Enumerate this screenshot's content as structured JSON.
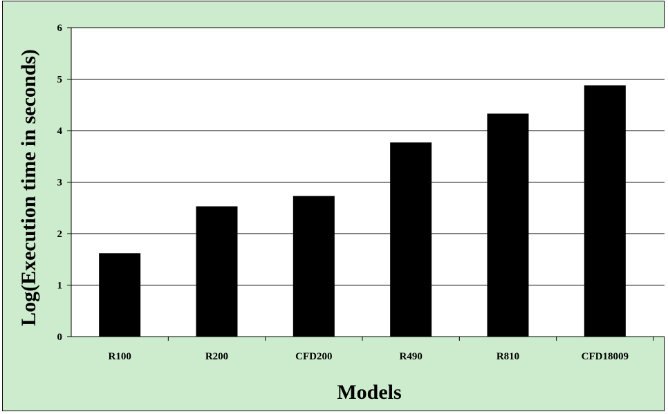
{
  "chart_data": {
    "type": "bar",
    "categories": [
      "R100",
      "R200",
      "CFD200",
      "R490",
      "R810",
      "CFD18009"
    ],
    "values": [
      1.62,
      2.53,
      2.73,
      3.77,
      4.33,
      4.88
    ],
    "xlabel": "Models",
    "ylabel": "Log(Execution time in seconds)",
    "ylim": [
      0,
      6
    ],
    "yticks": [
      0,
      1,
      2,
      3,
      4,
      5,
      6
    ],
    "grid": true,
    "legend": "none",
    "colors": {
      "background": "#cdeccd",
      "plot_area": "#ffffff",
      "bar": "#000000",
      "grid": "#000000"
    }
  }
}
